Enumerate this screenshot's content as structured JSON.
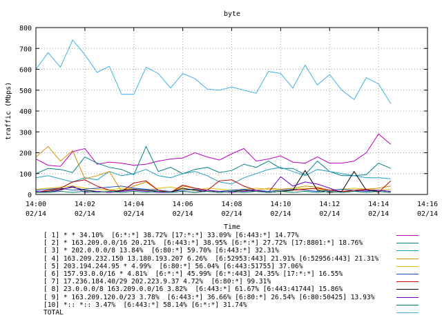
{
  "chart_data": {
    "type": "line",
    "title": "byte",
    "xlabel": "Time",
    "ylabel": "traffic (Mbps)",
    "ylim": [
      0,
      800
    ],
    "yticks": [
      0,
      100,
      200,
      300,
      400,
      500,
      600,
      700,
      800
    ],
    "xlim": [
      "14:00",
      "14:16"
    ],
    "xticks": [
      {
        "time": "14:00",
        "date": "02/14"
      },
      {
        "time": "14:02",
        "date": "02/14"
      },
      {
        "time": "14:04",
        "date": "02/14"
      },
      {
        "time": "14:06",
        "date": "02/14"
      },
      {
        "time": "14:08",
        "date": "02/14"
      },
      {
        "time": "14:10",
        "date": "02/14"
      },
      {
        "time": "14:12",
        "date": "02/14"
      },
      {
        "time": "14:14",
        "date": "02/14"
      },
      {
        "time": "14:16",
        "date": "02/14"
      }
    ],
    "x": [
      "14:00:00",
      "14:00:30",
      "14:01:00",
      "14:01:30",
      "14:02:00",
      "14:02:30",
      "14:03:00",
      "14:03:30",
      "14:04:00",
      "14:04:30",
      "14:05:00",
      "14:05:30",
      "14:06:00",
      "14:06:30",
      "14:07:00",
      "14:07:30",
      "14:08:00",
      "14:08:30",
      "14:09:00",
      "14:09:30",
      "14:10:00",
      "14:10:30",
      "14:11:00",
      "14:11:30",
      "14:12:00",
      "14:12:30",
      "14:13:00",
      "14:13:30",
      "14:14:00",
      "14:14:30"
    ],
    "series": [
      {
        "name": "[ 1] * * 34.10%  [6:*:*] 38.72% [17:*:*] 33.09% [6:443:*] 14.77%",
        "color": "#c000c0",
        "values": [
          170,
          140,
          135,
          205,
          220,
          145,
          155,
          150,
          140,
          145,
          160,
          170,
          175,
          200,
          180,
          165,
          195,
          220,
          160,
          170,
          185,
          155,
          150,
          180,
          150,
          150,
          160,
          200,
          290,
          240
        ]
      },
      {
        "name": "[ 2] * 163.209.0.0/16 20.21%  [6:443:*] 38.95% [6:*:*] 27.72% [17:8801:*] 18.76%",
        "color": "#008080",
        "values": [
          100,
          125,
          120,
          105,
          180,
          150,
          130,
          120,
          95,
          230,
          110,
          130,
          100,
          120,
          130,
          105,
          115,
          145,
          130,
          160,
          125,
          125,
          95,
          160,
          110,
          90,
          90,
          95,
          150,
          125
        ]
      },
      {
        "name": "[ 3] * 202.0.0.0/8 13.84%  [6:80:*] 59.70% [6:443:*] 32.31%",
        "color": "#20a0c0",
        "values": [
          80,
          90,
          75,
          60,
          80,
          70,
          110,
          90,
          100,
          120,
          90,
          80,
          100,
          110,
          90,
          60,
          50,
          80,
          100,
          120,
          130,
          110,
          90,
          120,
          110,
          100,
          90,
          80,
          80,
          75
        ]
      },
      {
        "name": "[ 4] 163.209.232.150 13.180.193.207 6.26%  [6:52953:443] 21.91% [6:52956:443] 21.31%",
        "color": "#d09000",
        "values": [
          180,
          230,
          160,
          210,
          75,
          90,
          110,
          15,
          40,
          60,
          20,
          10,
          40,
          30,
          20,
          10,
          15,
          20,
          20,
          30,
          25,
          30,
          40,
          35,
          20,
          15,
          15,
          25,
          30,
          40
        ]
      },
      {
        "name": "[ 5] 203.194.244.95 * 4.99%  [6:80:*] 56.04% [6:443:51755] 37.06%",
        "color": "#e0c000",
        "values": [
          25,
          30,
          35,
          40,
          30,
          25,
          20,
          30,
          25,
          20,
          30,
          35,
          25,
          20,
          30,
          25,
          20,
          25,
          30,
          25,
          20,
          25,
          30,
          25,
          20,
          25,
          30,
          25,
          20,
          25
        ]
      },
      {
        "name": "[ 6] 157.93.0.0/16 * 4.81%  [6:*:*] 45.99% [6:*:443] 24.35% [17:*:*] 16.55%",
        "color": "#2050c0",
        "values": [
          20,
          25,
          30,
          20,
          25,
          30,
          35,
          40,
          30,
          25,
          20,
          15,
          20,
          25,
          20,
          15,
          20,
          25,
          20,
          15,
          20,
          25,
          20,
          15,
          20,
          25,
          20,
          15,
          20,
          15
        ]
      },
      {
        "name": "[ 7] 17.236.184.40/29 202.223.9.37 4.72%  [6:80:*] 99.31%",
        "color": "#c00000",
        "values": [
          10,
          20,
          30,
          60,
          70,
          40,
          20,
          15,
          55,
          65,
          20,
          10,
          45,
          30,
          20,
          65,
          70,
          40,
          20,
          10,
          15,
          20,
          25,
          30,
          20,
          15,
          20,
          25,
          10,
          65
        ]
      },
      {
        "name": "[ 8] 23.0.0.0/8 163.209.0.0/16 3.82%  [6:443:*] 61.67% [6:443:41744] 15.86%",
        "color": "#000000",
        "values": [
          10,
          15,
          25,
          35,
          20,
          15,
          10,
          20,
          25,
          20,
          15,
          10,
          30,
          20,
          15,
          10,
          15,
          20,
          15,
          10,
          15,
          20,
          115,
          20,
          10,
          15,
          110,
          20,
          15,
          10
        ]
      },
      {
        "name": "[ 9] * 163.209.120.0/23 3.78%  [6:443:*] 36.66% [6:80:*] 26.54% [6:80:50425] 13.93%",
        "color": "#7000c0",
        "values": [
          15,
          10,
          20,
          40,
          10,
          15,
          10,
          15,
          20,
          15,
          10,
          10,
          15,
          10,
          20,
          15,
          10,
          15,
          20,
          10,
          85,
          40,
          60,
          50,
          30,
          10,
          15,
          20,
          20,
          15
        ]
      },
      {
        "name": "[10] *:: *:: 3.47%  [6:443:*] 58.14% [6:*:*] 31.74%",
        "color": "#008060",
        "values": [
          10,
          10,
          15,
          10,
          15,
          10,
          15,
          10,
          15,
          10,
          15,
          10,
          15,
          10,
          15,
          10,
          15,
          10,
          15,
          10,
          15,
          10,
          15,
          10,
          15,
          10,
          15,
          10,
          15,
          10
        ]
      },
      {
        "name": "TOTAL",
        "color": "#40b0e0",
        "values": [
          600,
          680,
          610,
          740,
          670,
          585,
          615,
          480,
          480,
          610,
          580,
          510,
          580,
          555,
          505,
          500,
          515,
          500,
          485,
          590,
          580,
          510,
          620,
          525,
          575,
          500,
          455,
          560,
          530,
          435
        ]
      }
    ]
  }
}
